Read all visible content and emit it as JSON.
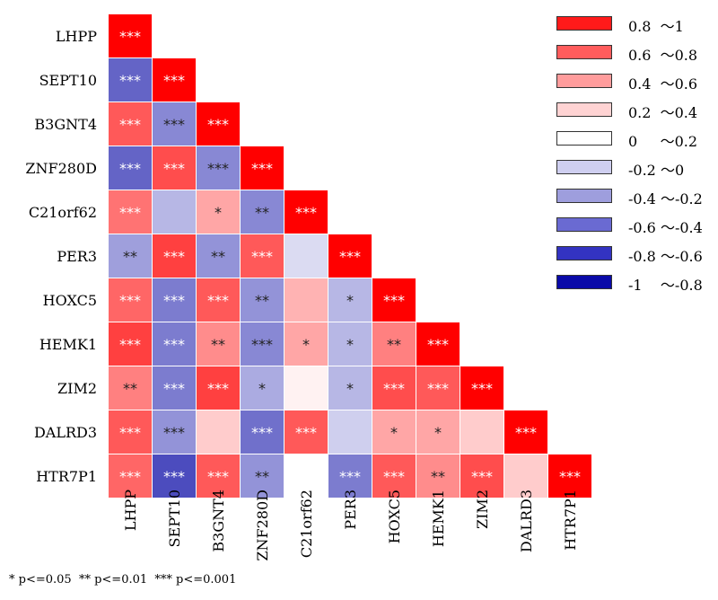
{
  "chart_data": {
    "type": "heatmap",
    "variables": [
      "LHPP",
      "SEPT10",
      "B3GNT4",
      "ZNF280D",
      "C21orf62",
      "PER3",
      "HOXC5",
      "HEMK1",
      "ZIM2",
      "DALRD3",
      "HTR7P1"
    ],
    "lower_triangle_values": [
      [
        1
      ],
      [
        -0.65,
        1
      ],
      [
        0.65,
        -0.5,
        1
      ],
      [
        -0.65,
        0.7,
        -0.5,
        1
      ],
      [
        0.55,
        -0.3,
        0.35,
        -0.5,
        1
      ],
      [
        -0.4,
        0.75,
        -0.45,
        0.65,
        -0.15,
        1
      ],
      [
        0.6,
        -0.55,
        0.65,
        -0.45,
        0.3,
        -0.3,
        1
      ],
      [
        0.75,
        -0.55,
        0.45,
        -0.5,
        0.35,
        -0.3,
        0.5,
        1
      ],
      [
        0.5,
        -0.55,
        0.75,
        -0.35,
        0.05,
        -0.3,
        0.7,
        0.65,
        1
      ],
      [
        0.65,
        -0.45,
        0.2,
        -0.6,
        0.65,
        -0.2,
        0.35,
        0.35,
        0.2,
        1
      ],
      [
        0.6,
        -0.75,
        0.65,
        -0.45,
        0.0,
        -0.55,
        0.65,
        0.45,
        0.7,
        0.2,
        1
      ]
    ],
    "significance": [
      [
        "***"
      ],
      [
        "***",
        "***"
      ],
      [
        "***",
        "***",
        "***"
      ],
      [
        "***",
        "***",
        "***",
        "***"
      ],
      [
        "***",
        "",
        "*",
        "**",
        "***"
      ],
      [
        "**",
        "***",
        "**",
        "***",
        "",
        "***"
      ],
      [
        "***",
        "***",
        "***",
        "**",
        "",
        "*",
        "***"
      ],
      [
        "***",
        "***",
        "**",
        "***",
        "*",
        "*",
        "**",
        "***"
      ],
      [
        "**",
        "***",
        "***",
        "*",
        "",
        "*",
        "***",
        "***",
        "***"
      ],
      [
        "***",
        "***",
        "",
        "***",
        "***",
        "",
        "*",
        "*",
        "",
        "***"
      ],
      [
        "***",
        "***",
        "***",
        "**",
        "",
        "***",
        "***",
        "**",
        "***",
        "",
        "***"
      ]
    ],
    "legend": [
      {
        "label": "0.8  ～1",
        "color": "#ff1a1a"
      },
      {
        "label": "0.6  ～0.8",
        "color": "#ff5c5c"
      },
      {
        "label": "0.4  ～0.6",
        "color": "#ff9c9c"
      },
      {
        "label": "0.2  ～0.4",
        "color": "#ffd3d3"
      },
      {
        "label": "0     ～0.2",
        "color": "#ffffff"
      },
      {
        "label": "-0.2 ～0",
        "color": "#cfcff0"
      },
      {
        "label": "-0.4 ～-0.2",
        "color": "#9e9edd"
      },
      {
        "label": "-0.6 ～-0.4",
        "color": "#6a6ad2"
      },
      {
        "label": "-0.8 ～-0.6",
        "color": "#3333c2"
      },
      {
        "label": "-1    ～-0.8",
        "color": "#0a0aa8"
      }
    ],
    "colorscale": {
      "negative_end": "#1010a8",
      "positive_end": "#ff0000",
      "neutral": "#ffffff"
    },
    "footnote": "* p<=0.05  ** p<=0.01  *** p<=0.001"
  }
}
